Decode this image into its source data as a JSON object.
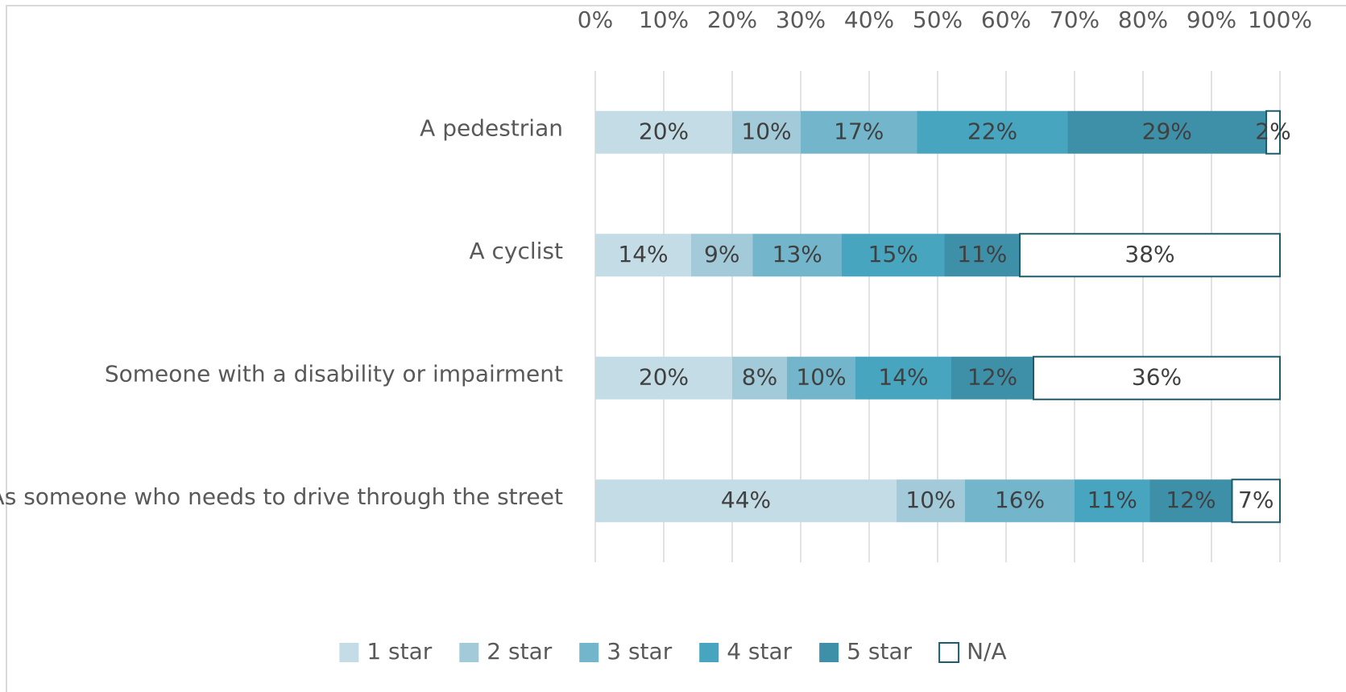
{
  "chart_data": {
    "type": "stacked-bar-horizontal",
    "categories": [
      "A pedestrian",
      "A cyclist",
      "Someone with a disability or impairment",
      "As someone who needs to drive through the street"
    ],
    "series": [
      {
        "name": "1 star",
        "color": "#c3dce5",
        "values": [
          20,
          14,
          20,
          44
        ],
        "value_labels": [
          "20%",
          "14%",
          "20%",
          "44%"
        ]
      },
      {
        "name": "2 star",
        "color": "#a2cad9",
        "values": [
          10,
          9,
          8,
          10
        ],
        "value_labels": [
          "10%",
          "9%",
          "8%",
          "10%"
        ]
      },
      {
        "name": "3 star",
        "color": "#73b6cc",
        "values": [
          17,
          13,
          10,
          16
        ],
        "value_labels": [
          "17%",
          "13%",
          "10%",
          "16%"
        ]
      },
      {
        "name": "4 star",
        "color": "#47a5bf",
        "values": [
          22,
          15,
          14,
          11
        ],
        "value_labels": [
          "22%",
          "15%",
          "14%",
          "11%"
        ]
      },
      {
        "name": "5 star",
        "color": "#3e90a9",
        "values": [
          29,
          11,
          12,
          12
        ],
        "value_labels": [
          "29%",
          "11%",
          "12%",
          "12%"
        ]
      },
      {
        "name": "N/A",
        "color": "#ffffff",
        "values": [
          2,
          38,
          36,
          7
        ],
        "value_labels": [
          "2%",
          "38%",
          "36%",
          "7%"
        ]
      }
    ],
    "xlim": [
      0,
      100
    ],
    "xticks": [
      {
        "value": 0,
        "label": "0%"
      },
      {
        "value": 10,
        "label": "10%"
      },
      {
        "value": 20,
        "label": "20%"
      },
      {
        "value": 30,
        "label": "30%"
      },
      {
        "value": 40,
        "label": "40%"
      },
      {
        "value": 50,
        "label": "50%"
      },
      {
        "value": 60,
        "label": "60%"
      },
      {
        "value": 70,
        "label": "70%"
      },
      {
        "value": 80,
        "label": "80%"
      },
      {
        "value": 90,
        "label": "90%"
      },
      {
        "value": 100,
        "label": "100%"
      }
    ],
    "grid": true,
    "legend": "bottom"
  }
}
